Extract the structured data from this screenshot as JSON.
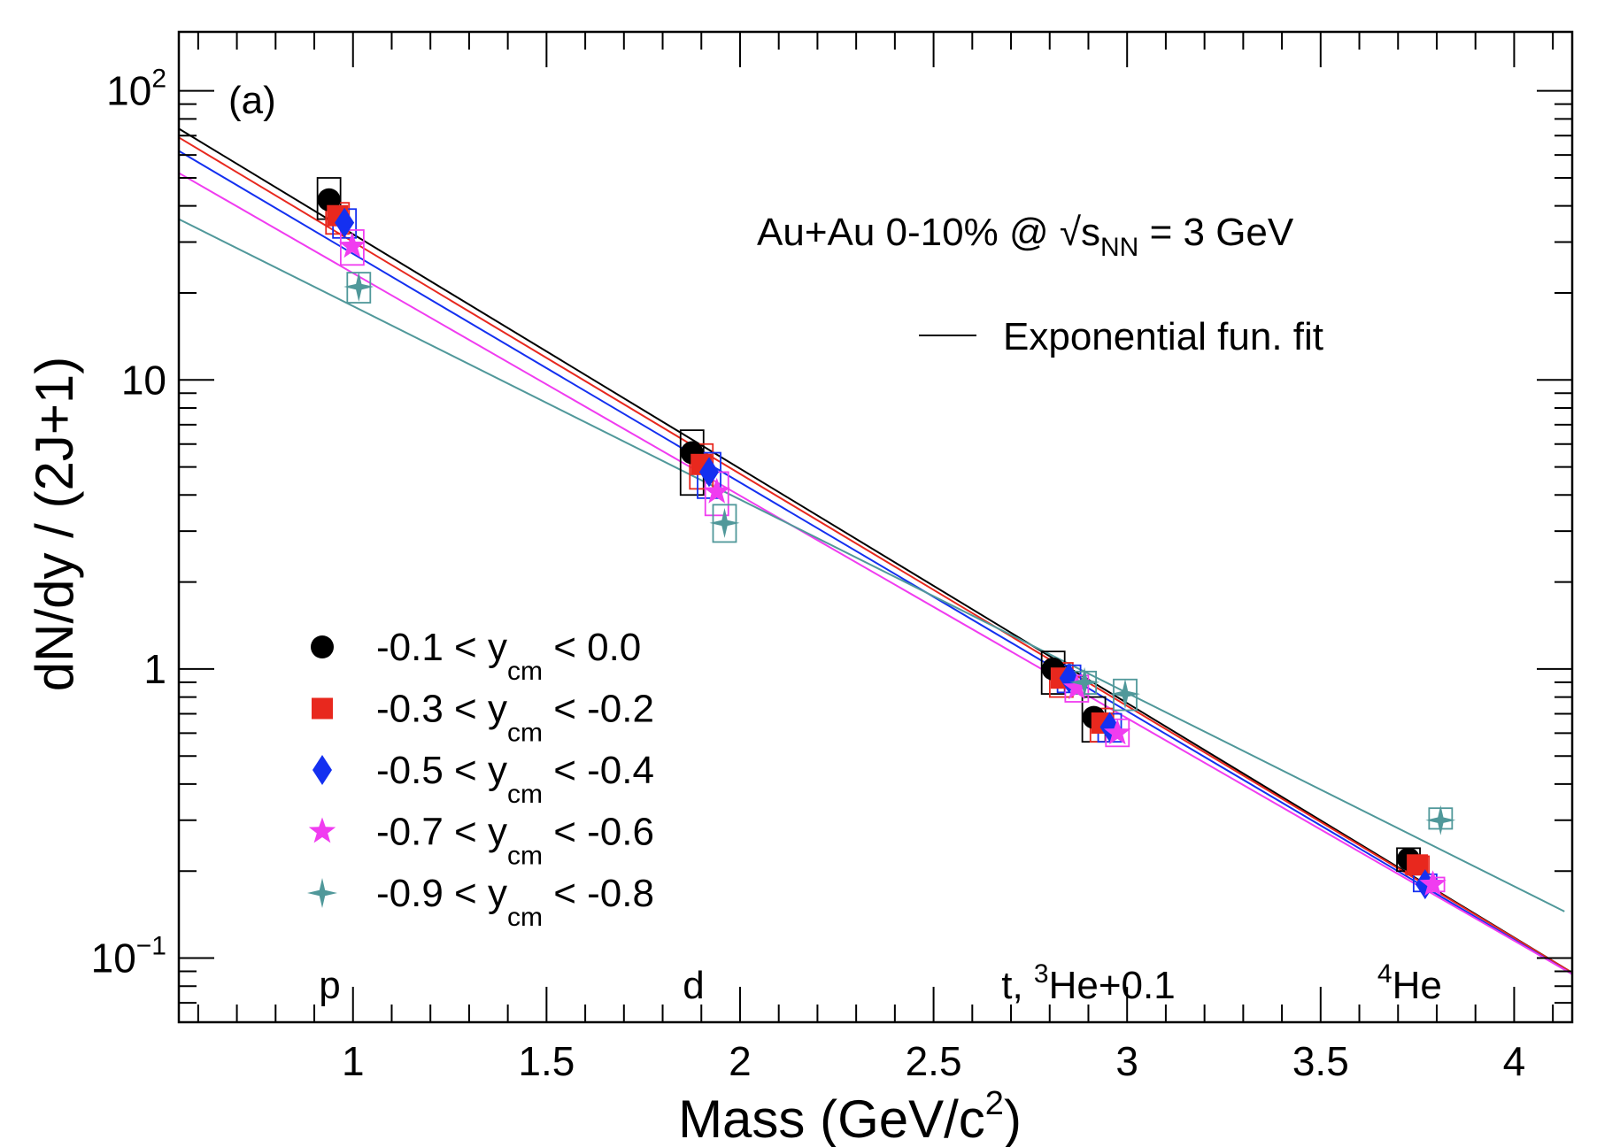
{
  "chart_data": {
    "type": "scatter",
    "panel_label": "(a)",
    "annotation": {
      "prefix": "Au+Au 0-10% @ ",
      "sqrt_symbol": "√",
      "s": "s",
      "s_sub": "NN",
      "suffix": " = 3 GeV"
    },
    "fit_legend_label": "Exponential fun. fit",
    "xlabel": {
      "main": "Mass (GeV/c",
      "sup": "2",
      "tail": ")"
    },
    "ylabel": "dN/dy / (2J+1)",
    "xlim": [
      0.55,
      4.15
    ],
    "ylim": [
      0.06,
      160
    ],
    "yscale": "log",
    "xticks": [
      {
        "value": 1,
        "label": "1"
      },
      {
        "value": 1.5,
        "label": "1.5"
      },
      {
        "value": 2,
        "label": "2"
      },
      {
        "value": 2.5,
        "label": "2.5"
      },
      {
        "value": 3,
        "label": "3"
      },
      {
        "value": 3.5,
        "label": "3.5"
      },
      {
        "value": 4,
        "label": "4"
      }
    ],
    "yticks": [
      {
        "value": 0.1,
        "base": "10",
        "sup": "−1"
      },
      {
        "value": 1,
        "base": "1",
        "sup": ""
      },
      {
        "value": 10,
        "base": "10",
        "sup": ""
      },
      {
        "value": 100,
        "base": "10",
        "sup": "2"
      }
    ],
    "particle_labels": [
      {
        "x": 0.94,
        "text": "p",
        "sup": ""
      },
      {
        "x": 1.88,
        "text": "d",
        "sup": ""
      },
      {
        "x": 2.9,
        "text": "t, ",
        "sup": "3",
        "tail": "He+0.1"
      },
      {
        "x": 3.73,
        "text": "",
        "sup": "4",
        "tail": "He"
      }
    ],
    "legend_placement": "bottom-left",
    "series": [
      {
        "name": "-0.1 < y_cm < 0.0",
        "legend": {
          "left": "-0.1 < y",
          "sub": "cm",
          "right": " <  0.0"
        },
        "marker": "circle",
        "color": "#000000",
        "fit": {
          "x0": 0.55,
          "y0": 74,
          "x1": 4.15,
          "y1": 0.089
        },
        "points": [
          {
            "x": 0.938,
            "y": 42,
            "ylo": 36,
            "yhi": 50
          },
          {
            "x": 1.876,
            "y": 5.6,
            "ylo": 4.0,
            "yhi": 6.7
          },
          {
            "x": 2.809,
            "y": 1.0,
            "ylo": 0.82,
            "yhi": 1.15
          },
          {
            "x": 2.914,
            "y": 0.68,
            "ylo": 0.56,
            "yhi": 0.8
          },
          {
            "x": 3.727,
            "y": 0.22,
            "ylo": 0.2,
            "yhi": 0.24
          }
        ]
      },
      {
        "name": "-0.3 < y_cm < -0.2",
        "legend": {
          "left": "-0.3 < y",
          "sub": "cm",
          "right": " < -0.2"
        },
        "marker": "square",
        "color": "#e8281e",
        "fit": {
          "x0": 0.55,
          "y0": 69,
          "x1": 4.15,
          "y1": 0.089
        },
        "points": [
          {
            "x": 0.96,
            "y": 37,
            "ylo": 32,
            "yhi": 41
          },
          {
            "x": 1.9,
            "y": 5.1,
            "ylo": 4.2,
            "yhi": 6.0
          },
          {
            "x": 2.83,
            "y": 0.93,
            "ylo": 0.8,
            "yhi": 1.05
          },
          {
            "x": 2.935,
            "y": 0.65,
            "ylo": 0.56,
            "yhi": 0.73
          },
          {
            "x": 3.75,
            "y": 0.21,
            "ylo": 0.195,
            "yhi": 0.225
          }
        ]
      },
      {
        "name": "-0.5 < y_cm < -0.4",
        "legend": {
          "left": "-0.5 < y",
          "sub": "cm",
          "right": " < -0.4"
        },
        "marker": "diamond",
        "color": "#1430f0",
        "fit": {
          "x0": 0.55,
          "y0": 62,
          "x1": 4.15,
          "y1": 0.088
        },
        "points": [
          {
            "x": 0.978,
            "y": 35,
            "ylo": 31,
            "yhi": 39
          },
          {
            "x": 1.92,
            "y": 4.8,
            "ylo": 3.9,
            "yhi": 5.6
          },
          {
            "x": 2.85,
            "y": 0.93,
            "ylo": 0.83,
            "yhi": 1.03
          },
          {
            "x": 2.955,
            "y": 0.63,
            "ylo": 0.56,
            "yhi": 0.7
          },
          {
            "x": 3.77,
            "y": 0.18,
            "ylo": 0.17,
            "yhi": 0.195
          }
        ]
      },
      {
        "name": "-0.7 < y_cm < -0.6",
        "legend": {
          "left": "-0.7 < y",
          "sub": "cm",
          "right": " < -0.6"
        },
        "marker": "star",
        "color": "#f03cf0",
        "fit": {
          "x0": 0.55,
          "y0": 52,
          "x1": 4.15,
          "y1": 0.088
        },
        "points": [
          {
            "x": 0.998,
            "y": 29,
            "ylo": 25,
            "yhi": 33
          },
          {
            "x": 1.94,
            "y": 4.1,
            "ylo": 3.4,
            "yhi": 4.8
          },
          {
            "x": 2.87,
            "y": 0.86,
            "ylo": 0.77,
            "yhi": 0.95
          },
          {
            "x": 2.975,
            "y": 0.6,
            "ylo": 0.54,
            "yhi": 0.67
          },
          {
            "x": 3.79,
            "y": 0.18,
            "ylo": 0.17,
            "yhi": 0.19
          }
        ]
      },
      {
        "name": "-0.9 < y_cm < -0.8",
        "legend": {
          "left": "-0.9 < y",
          "sub": "cm",
          "right": " < -0.8"
        },
        "marker": "fourstar",
        "color": "#50989a",
        "fit": {
          "x0": 0.55,
          "y0": 36,
          "x1": 4.13,
          "y1": 0.145
        },
        "points": [
          {
            "x": 1.015,
            "y": 21,
            "ylo": 18.5,
            "yhi": 23.5
          },
          {
            "x": 1.96,
            "y": 3.2,
            "ylo": 2.75,
            "yhi": 3.7
          },
          {
            "x": 2.89,
            "y": 0.9,
            "ylo": 0.82,
            "yhi": 0.98
          },
          {
            "x": 2.995,
            "y": 0.82,
            "ylo": 0.72,
            "yhi": 0.92
          },
          {
            "x": 3.81,
            "y": 0.3,
            "ylo": 0.28,
            "yhi": 0.33
          }
        ]
      }
    ]
  }
}
